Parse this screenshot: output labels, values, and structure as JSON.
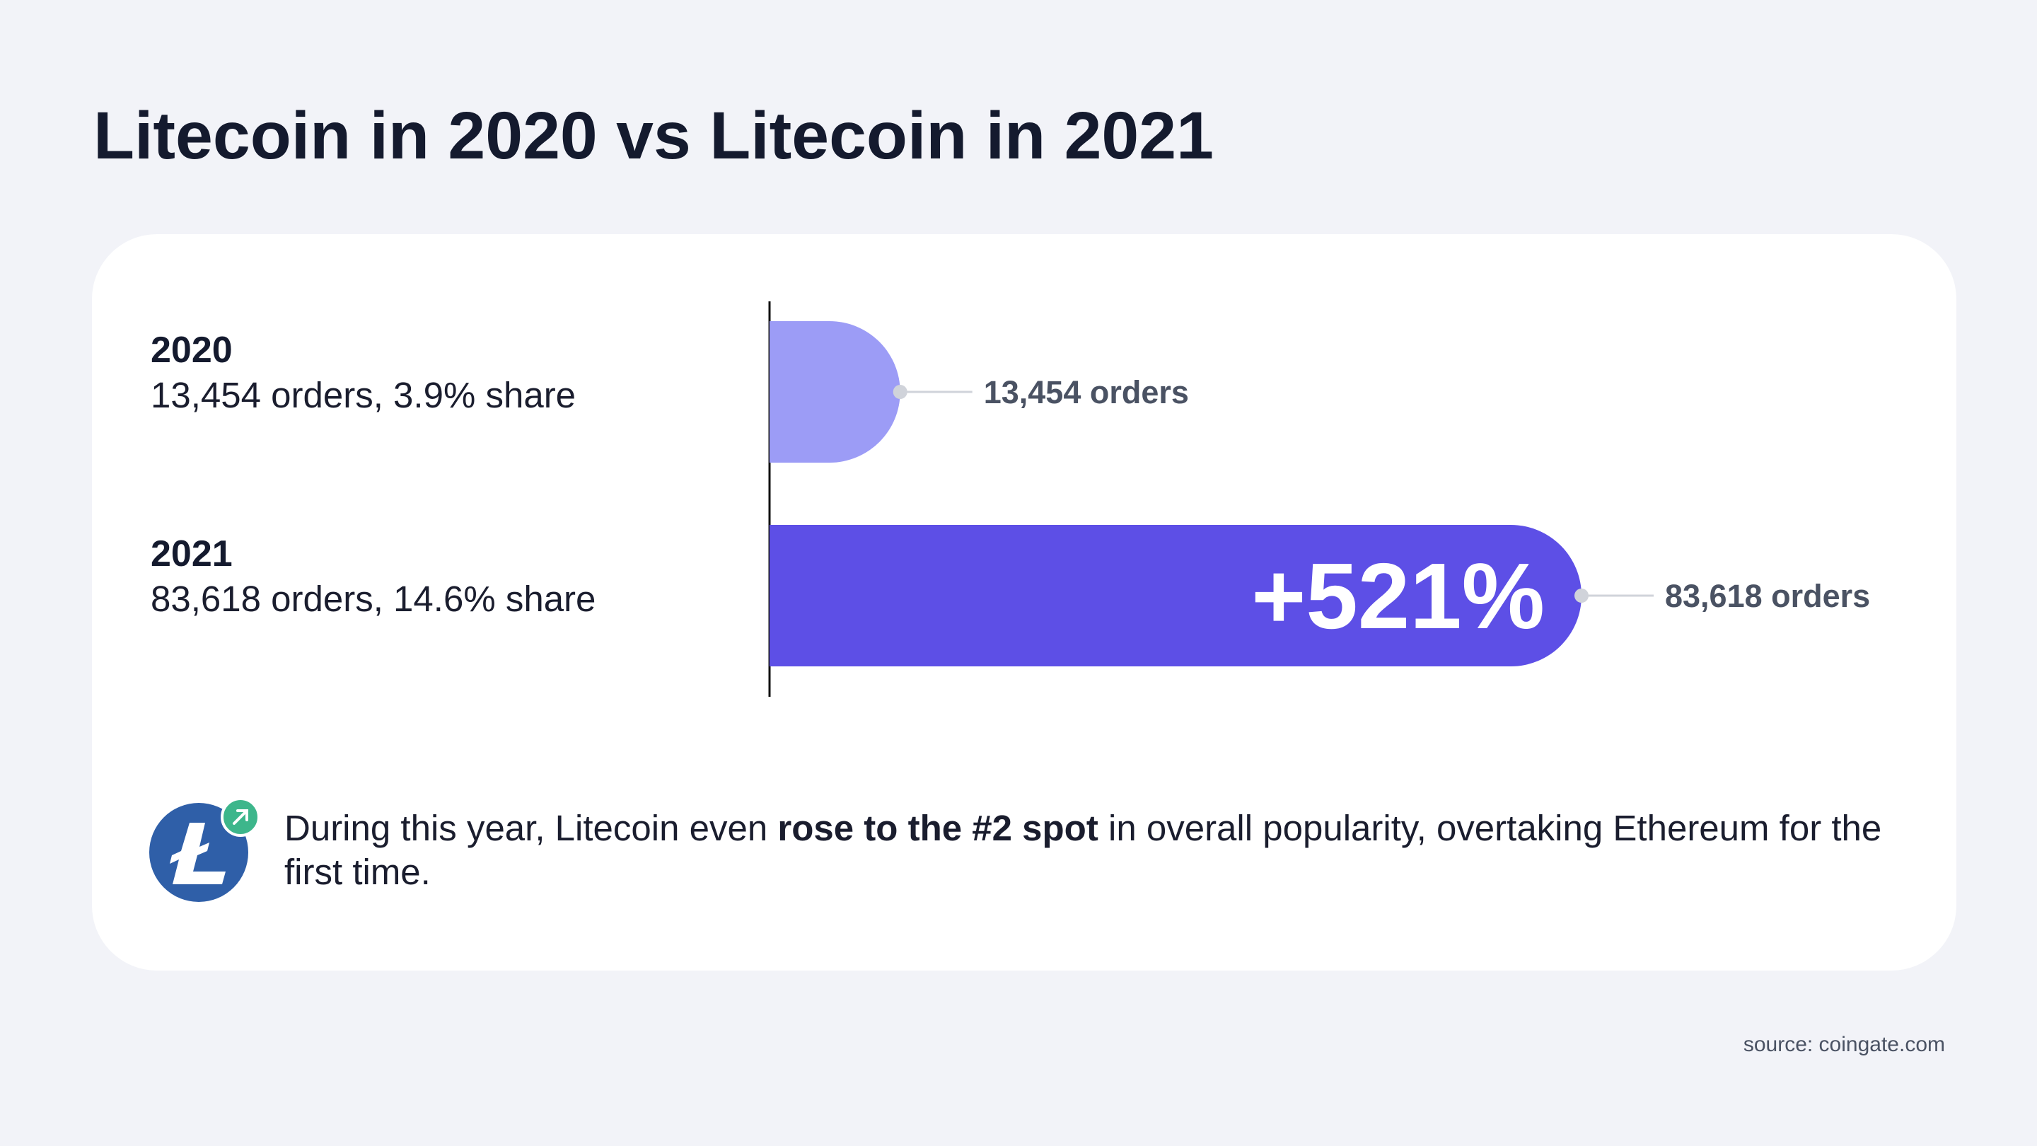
{
  "chart_data": {
    "type": "bar",
    "orientation": "horizontal",
    "title": "Litecoin in 2020 vs Litecoin in 2021",
    "categories": [
      "2020",
      "2021"
    ],
    "category_details": [
      "13,454 orders, 3.9% share",
      "83,618 orders, 14.6% share"
    ],
    "values": [
      13454,
      83618
    ],
    "value_labels": [
      "13,454 orders",
      "83,618 orders"
    ],
    "colors": [
      "#9c9cf6",
      "#5d4fe6"
    ],
    "annotation": "+521%",
    "note": {
      "before": "During this year, Litecoin even ",
      "highlight": "rose to the #2 spot",
      "after": " in overall popularity, overtaking Ethereum for the first time."
    },
    "source": "source: coingate.com"
  }
}
